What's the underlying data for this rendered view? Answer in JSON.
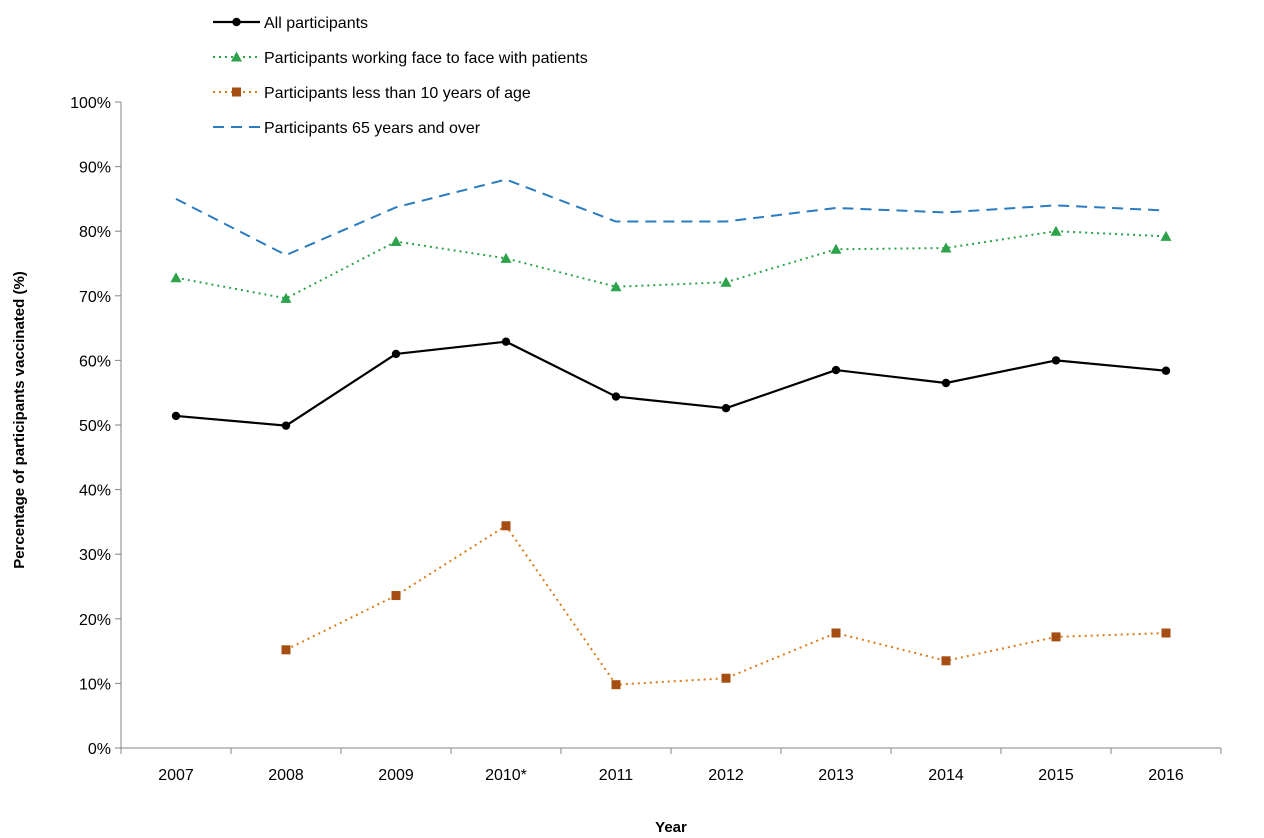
{
  "chart_data": {
    "type": "line",
    "categories": [
      "2007",
      "2008",
      "2009",
      "2010*",
      "2011",
      "2012",
      "2013",
      "2014",
      "2015",
      "2016"
    ],
    "xlabel": "Year",
    "ylabel": "Percentage of participants vaccinated (%)",
    "ylim": [
      0,
      100
    ],
    "y_tick_step": 10,
    "y_tick_suffix": "%",
    "grid": false,
    "legend": "top-left",
    "series": [
      {
        "name": "All participants",
        "values": [
          51.4,
          49.9,
          61.0,
          62.9,
          54.4,
          52.6,
          58.5,
          56.5,
          60.0,
          58.4
        ],
        "color": "#000000",
        "line": "solid",
        "marker": "circle"
      },
      {
        "name": "Participants working face to face with patients",
        "values": [
          72.8,
          69.6,
          78.4,
          75.8,
          71.4,
          72.1,
          77.2,
          77.4,
          80.0,
          79.2
        ],
        "color": "#2ca24a",
        "line": "dotted",
        "marker": "triangle"
      },
      {
        "name": "Participants less than 10 years of age",
        "values": [
          null,
          15.2,
          23.6,
          34.4,
          9.8,
          10.8,
          17.8,
          13.5,
          17.2,
          17.8
        ],
        "color": "#d97b16",
        "marker_color": "#a64d12",
        "line": "dotted",
        "marker": "square"
      },
      {
        "name": "Participants 65 years and over",
        "values": [
          85.0,
          76.3,
          83.7,
          88.0,
          81.5,
          81.5,
          83.6,
          82.9,
          84.0,
          83.2
        ],
        "color": "#2a7bbf",
        "line": "dashed",
        "marker": "none"
      }
    ]
  }
}
